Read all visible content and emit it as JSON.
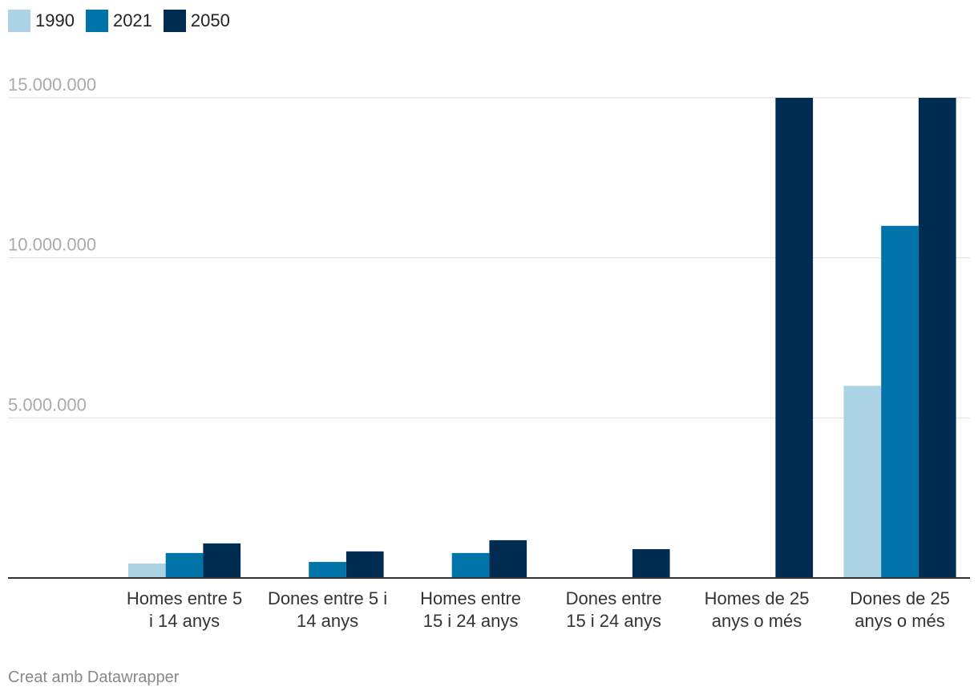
{
  "chart_data": {
    "type": "bar",
    "categories": [
      [
        "Homes entre 5",
        "i 14 anys"
      ],
      [
        "Dones entre 5 i",
        "14 anys"
      ],
      [
        "Homes entre",
        "15 i 24 anys"
      ],
      [
        "Dones entre",
        "15 i 24 anys"
      ],
      [
        "Homes de 25",
        "anys o més"
      ],
      [
        "Dones de 25",
        "anys o més"
      ]
    ],
    "series": [
      {
        "name": "1990",
        "color": "#abd3e3",
        "values": [
          450000,
          0,
          0,
          0,
          0,
          6000000
        ]
      },
      {
        "name": "2021",
        "color": "#0074a8",
        "values": [
          780000,
          500000,
          780000,
          0,
          0,
          11000000
        ]
      },
      {
        "name": "2050",
        "color": "#002c52",
        "values": [
          1080000,
          830000,
          1180000,
          900000,
          15000000,
          15000000
        ]
      }
    ],
    "yticks": [
      {
        "value": 5000000,
        "label": "5.000.000"
      },
      {
        "value": 10000000,
        "label": "10.000.000"
      },
      {
        "value": 15000000,
        "label": "15.000.000"
      }
    ],
    "ylim": [
      0,
      15000000
    ],
    "grid": true,
    "legend_position": "top-left"
  },
  "footer": {
    "credit": "Creat amb Datawrapper"
  }
}
